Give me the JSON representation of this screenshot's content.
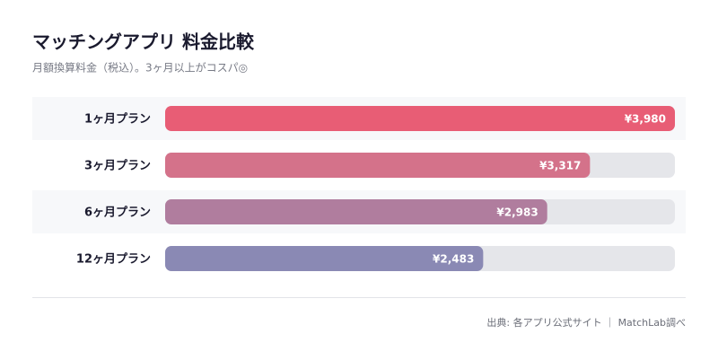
{
  "chart_data": {
    "type": "bar",
    "orientation": "horizontal",
    "title": "マッチングアプリ 料金比較",
    "subtitle": "月額換算料金（税込）。3ヶ月以上がコスパ◎",
    "categories": [
      "1ヶ月プラン",
      "3ヶ月プラン",
      "6ヶ月プラン",
      "12ヶ月プラン"
    ],
    "values": [
      3980,
      3317,
      2983,
      2483
    ],
    "value_labels": [
      "¥3,980",
      "¥3,317",
      "¥2,983",
      "¥2,483"
    ],
    "colors": [
      "#e85d75",
      "#d4728a",
      "#b07d9e",
      "#8a89b4"
    ],
    "track_color": "#e5e6ea",
    "source": "出典: 各アプリ公式サイト ｜ MatchLab調べ"
  }
}
